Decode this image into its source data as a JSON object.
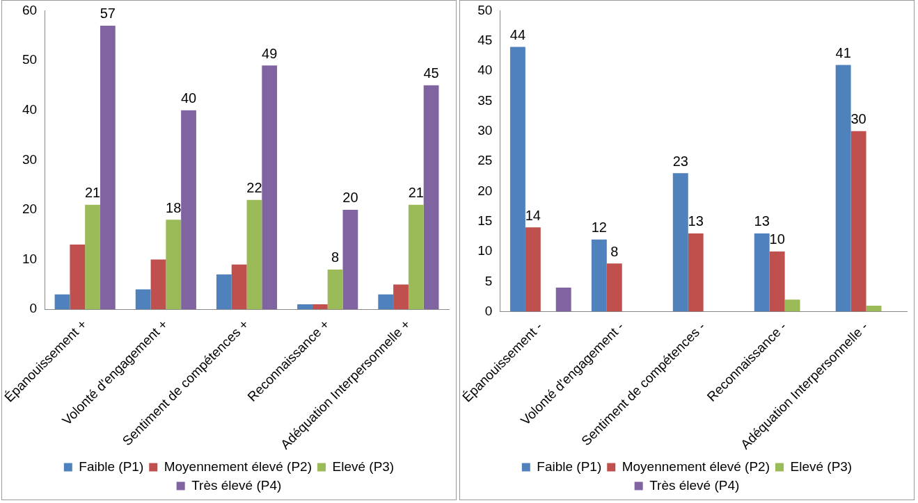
{
  "chart_data": [
    {
      "type": "bar",
      "categories": [
        "Épanouissement +",
        "Volonté d'engagement +",
        "Sentiment de compétences +",
        "Reconnaissance +",
        "Adéquation Interpersonnelle +"
      ],
      "series": [
        {
          "name": "Faible (P1)",
          "color": "#4f81bd",
          "values": [
            3,
            4,
            7,
            1,
            3
          ]
        },
        {
          "name": "Moyennement élevé (P2)",
          "color": "#c0504d",
          "values": [
            13,
            10,
            9,
            1,
            5
          ]
        },
        {
          "name": "Elevé (P3)",
          "color": "#9bbb59",
          "values": [
            21,
            18,
            22,
            8,
            21
          ],
          "value_labels": [
            "21",
            "18",
            "22",
            "8",
            "21"
          ]
        },
        {
          "name": "Très élevé (P4)",
          "color": "#8064a2",
          "values": [
            57,
            40,
            49,
            20,
            45
          ],
          "value_labels": [
            "57",
            "40",
            "49",
            "20",
            "45"
          ]
        }
      ],
      "ylim": [
        0,
        60
      ],
      "yticks": [
        0,
        10,
        20,
        30,
        40,
        50,
        60
      ],
      "grid": false,
      "legend": "bottom"
    },
    {
      "type": "bar",
      "categories": [
        "Épanouissement -",
        "Volonté d'engagement -",
        "Sentiment de compétences -",
        "Reconnaissance -",
        "Adéquation Interpersonnelle -"
      ],
      "series": [
        {
          "name": "Faible (P1)",
          "color": "#4f81bd",
          "values": [
            44,
            12,
            23,
            13,
            41
          ],
          "value_labels": [
            "44",
            "12",
            "23",
            "13",
            "41"
          ]
        },
        {
          "name": "Moyennement élevé (P2)",
          "color": "#c0504d",
          "values": [
            14,
            8,
            13,
            10,
            30
          ],
          "value_labels": [
            "14",
            "8",
            "13",
            "10",
            "30"
          ]
        },
        {
          "name": "Elevé (P3)",
          "color": "#9bbb59",
          "values": [
            0,
            0,
            0,
            2,
            1
          ]
        },
        {
          "name": "Très élevé (P4)",
          "color": "#8064a2",
          "values": [
            4,
            0,
            0,
            0,
            0
          ]
        }
      ],
      "ylim": [
        0,
        50
      ],
      "yticks": [
        0,
        5,
        10,
        15,
        20,
        25,
        30,
        35,
        40,
        45,
        50
      ],
      "grid": false,
      "legend": "bottom"
    }
  ]
}
